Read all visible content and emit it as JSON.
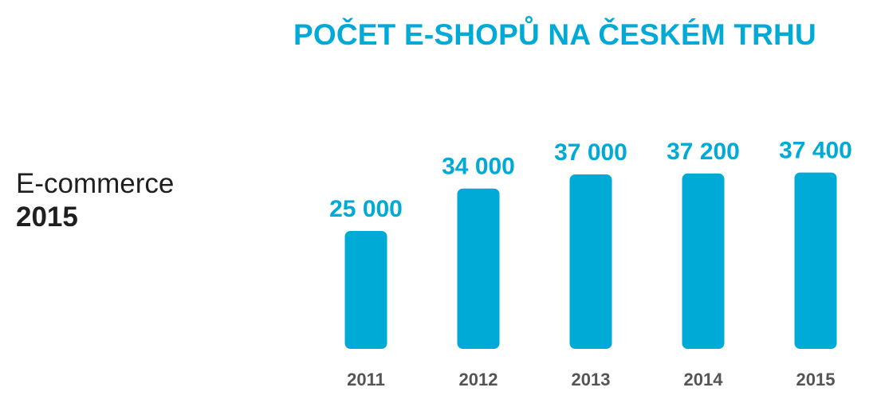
{
  "colors": {
    "accent": "#00aad6",
    "text_dark": "#1f1f1f",
    "tick_text": "#555555"
  },
  "side_label": {
    "line1": "E-commerce",
    "line2": "2015"
  },
  "chart_data": {
    "type": "bar",
    "title": "POČET E-SHOPŮ NA ČESKÉM TRHU",
    "xlabel": "",
    "ylabel": "",
    "categories": [
      "2011",
      "2012",
      "2013",
      "2014",
      "2015"
    ],
    "values": [
      25000,
      34000,
      37000,
      37200,
      37400
    ],
    "value_labels": [
      "25 000",
      "34 000",
      "37 000",
      "37 200",
      "37 400"
    ],
    "ylim": [
      0,
      40000
    ],
    "grid": false,
    "legend": "none"
  }
}
